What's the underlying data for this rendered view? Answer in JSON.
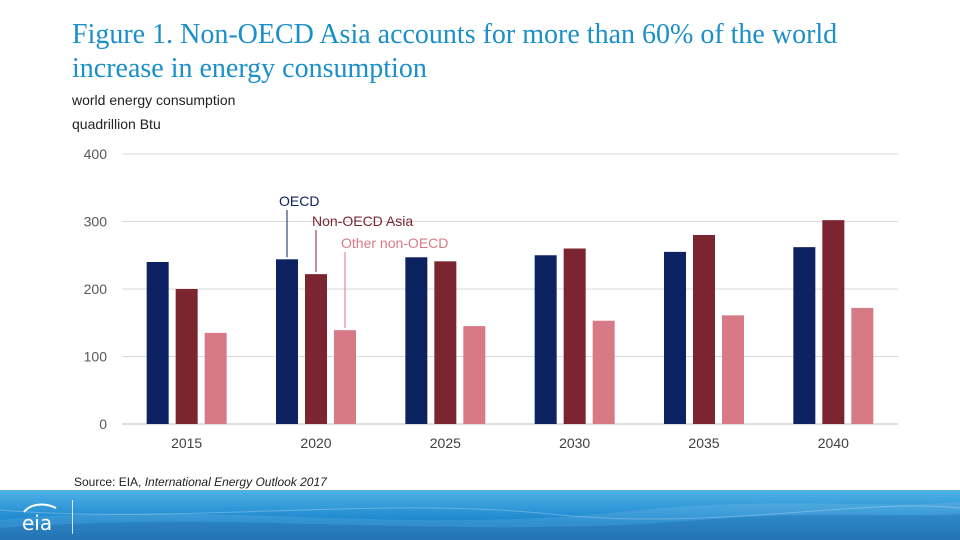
{
  "title": "Figure 1. Non-OECD Asia accounts for more than 60% of the world increase in energy consumption",
  "subtitle_line1": "world energy consumption",
  "subtitle_line2": "quadrillion Btu",
  "source_prefix": "Source: EIA, ",
  "source_italic": "International Energy Outlook 2017",
  "logo_text": "eia",
  "chart_data": {
    "type": "bar",
    "categories": [
      "2015",
      "2020",
      "2025",
      "2030",
      "2035",
      "2040"
    ],
    "series": [
      {
        "name": "OECD",
        "color": "#0d2260",
        "values": [
          240,
          244,
          247,
          250,
          255,
          262
        ]
      },
      {
        "name": "Non-OECD Asia",
        "color": "#7b2531",
        "values": [
          200,
          222,
          241,
          260,
          280,
          302
        ]
      },
      {
        "name": "Other non-OECD",
        "color": "#d77a85",
        "values": [
          135,
          139,
          145,
          153,
          161,
          172
        ]
      }
    ],
    "ylim": [
      0,
      400
    ],
    "yticks": [
      0,
      100,
      200,
      300,
      400
    ],
    "grid": true,
    "legend": "direct labels on 2020 bars"
  }
}
